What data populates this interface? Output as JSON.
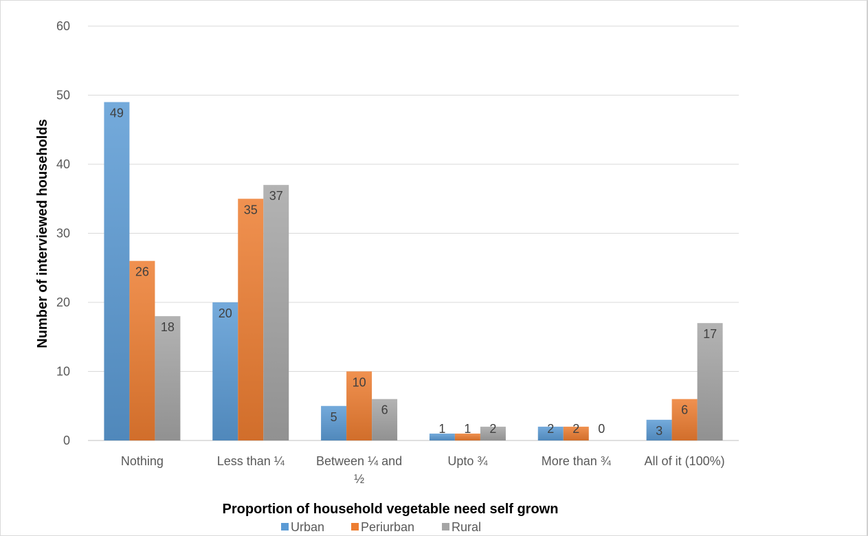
{
  "chart_data": {
    "type": "bar",
    "title": "",
    "xlabel": "Proportion of household vegetable need self grown",
    "ylabel": "Number of interviewed households",
    "ylim": [
      0,
      60
    ],
    "yticks": [
      0,
      10,
      20,
      30,
      40,
      50,
      60
    ],
    "grid": true,
    "legend_position": "bottom",
    "categories": [
      "Nothing",
      "Less than ¼",
      "Between ¼ and ½",
      "Upto ¾",
      "More than ¾",
      "All of it (100%)"
    ],
    "category_lines": [
      [
        "Nothing"
      ],
      [
        "Less than ¼"
      ],
      [
        "Between ¼ and",
        "½"
      ],
      [
        "Upto ¾"
      ],
      [
        "More than ¾"
      ],
      [
        "All of it (100%)"
      ]
    ],
    "series": [
      {
        "name": "Urban",
        "color": "#5b9bd5",
        "values": [
          49,
          20,
          5,
          1,
          2,
          3
        ]
      },
      {
        "name": "Periurban",
        "color": "#ed7d31",
        "values": [
          26,
          35,
          10,
          1,
          2,
          6
        ]
      },
      {
        "name": "Rural",
        "color": "#a5a5a5",
        "values": [
          18,
          37,
          6,
          2,
          0,
          17
        ]
      }
    ]
  }
}
